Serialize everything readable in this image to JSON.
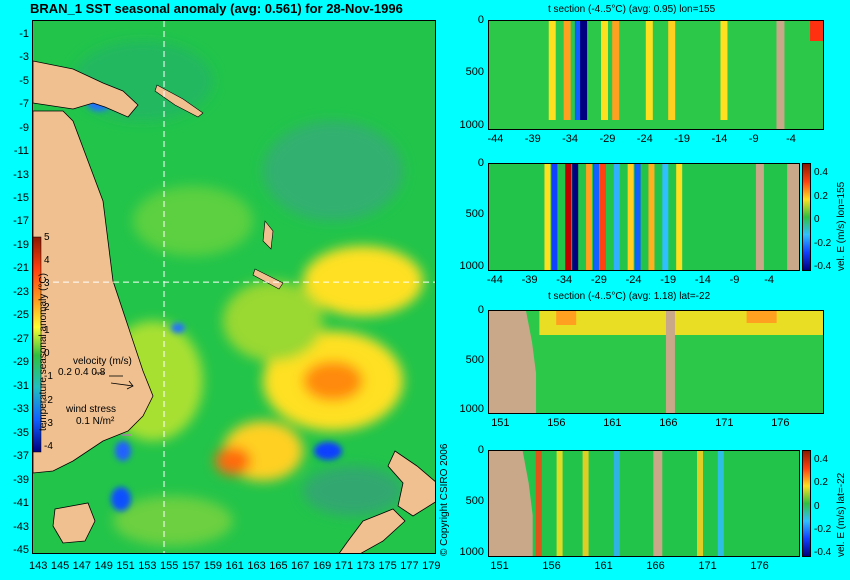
{
  "map": {
    "title": "BRAN_1 SST seasonal anomaly (avg: 0.561) for 28-Nov-1996",
    "lat_ticks": [
      "-1",
      "-3",
      "-5",
      "-7",
      "-9",
      "-11",
      "-13",
      "-15",
      "-17",
      "-19",
      "-21",
      "-23",
      "-25",
      "-27",
      "-29",
      "-31",
      "-33",
      "-35",
      "-37",
      "-39",
      "-41",
      "-43",
      "-45"
    ],
    "lon_ticks": [
      "143",
      "145",
      "147",
      "149",
      "151",
      "153",
      "155",
      "157",
      "159",
      "161",
      "163",
      "165",
      "167",
      "169",
      "171",
      "173",
      "175",
      "177",
      "179"
    ],
    "colorbar_ticks": [
      "5",
      "4",
      "3",
      "2",
      "1",
      "0",
      "-1",
      "-2",
      "-3",
      "-4"
    ],
    "colorbar_label": "temperature seasonal anomaly (°C)",
    "velocity_label": "velocity (m/s)",
    "velocity_scale": "0.2 0.4 0.8",
    "wind_label": "wind stress",
    "wind_scale": "0.1 N/m²",
    "copyright": "© Copyright CSIRO 2006",
    "section_lon": 155,
    "section_lat": -22
  },
  "panels": [
    {
      "title": "t section (-4..5°C) (avg: 0.95) lon=155",
      "y_ticks": [
        "0",
        "500",
        "1000"
      ],
      "x_ticks": [
        "-44",
        "-39",
        "-34",
        "-29",
        "-24",
        "-19",
        "-14",
        "-9",
        "-4"
      ]
    },
    {
      "title": "",
      "side_label": "vel. E (m/s) lon=155",
      "y_ticks": [
        "0",
        "500",
        "1000"
      ],
      "x_ticks": [
        "-44",
        "-39",
        "-34",
        "-29",
        "-24",
        "-19",
        "-14",
        "-9",
        "-4"
      ],
      "cb_ticks": [
        "0.4",
        "0.2",
        "0",
        "-0.2",
        "-0.4"
      ]
    },
    {
      "title": "t section (-4..5°C) (avg: 1.18) lat=-22",
      "y_ticks": [
        "0",
        "500",
        "1000"
      ],
      "x_ticks": [
        "151",
        "156",
        "161",
        "166",
        "171",
        "176"
      ]
    },
    {
      "title": "",
      "side_label": "vel. E (m/s) lat=-22",
      "y_ticks": [
        "0",
        "500",
        "1000"
      ],
      "x_ticks": [
        "151",
        "156",
        "161",
        "166",
        "171",
        "176"
      ],
      "cb_ticks": [
        "0.4",
        "0.2",
        "0",
        "-0.2",
        "-0.4"
      ]
    }
  ],
  "colors": {
    "background": "#00ffff",
    "land": "#f0c090",
    "ocean_base": "#22c44a",
    "warm": "#ffe020",
    "hot": "#ff7a10",
    "cold": "#1060ff",
    "seafloor": "#c8a888"
  },
  "chart_data": [
    {
      "type": "heatmap",
      "title": "BRAN_1 SST seasonal anomaly (avg: 0.561) for 28-Nov-1996",
      "xlabel": "",
      "ylabel": "",
      "xlim": [
        143,
        180
      ],
      "ylim": [
        -45,
        0
      ],
      "colorbar_range": [
        -4,
        5
      ],
      "colorbar_label": "temperature seasonal anomaly (°C)",
      "average": 0.561,
      "date": "28-Nov-1996",
      "x_ticks": [
        143,
        145,
        147,
        149,
        151,
        153,
        155,
        157,
        159,
        161,
        163,
        165,
        167,
        169,
        171,
        173,
        175,
        177,
        179
      ],
      "y_ticks": [
        -1,
        -3,
        -5,
        -7,
        -9,
        -11,
        -13,
        -15,
        -17,
        -19,
        -21,
        -23,
        -25,
        -27,
        -29,
        -31,
        -33,
        -35,
        -37,
        -39,
        -41,
        -43,
        -45
      ]
    },
    {
      "type": "heatmap",
      "title": "t section (-4..5°C) (avg: 0.95) lon=155",
      "average": 0.95,
      "colorbar_range": [
        -4,
        5
      ],
      "xlim": [
        -45,
        0
      ],
      "ylim": [
        1050,
        0
      ],
      "x_ticks": [
        -44,
        -39,
        -34,
        -29,
        -24,
        -19,
        -14,
        -9,
        -4
      ],
      "y_ticks": [
        0,
        500,
        1000
      ]
    },
    {
      "type": "heatmap",
      "title": "",
      "colorbar_label": "vel. E (m/s) lon=155",
      "colorbar_range": [
        -0.4,
        0.4
      ],
      "xlim": [
        -45,
        0
      ],
      "ylim": [
        1050,
        0
      ],
      "x_ticks": [
        -44,
        -39,
        -34,
        -29,
        -24,
        -19,
        -14,
        -9,
        -4
      ],
      "y_ticks": [
        0,
        500,
        1000
      ]
    },
    {
      "type": "heatmap",
      "title": "t section (-4..5°C) (avg: 1.18) lat=-22",
      "average": 1.18,
      "colorbar_range": [
        -4,
        5
      ],
      "xlim": [
        150,
        180
      ],
      "ylim": [
        1050,
        0
      ],
      "x_ticks": [
        151,
        156,
        161,
        166,
        171,
        176
      ],
      "y_ticks": [
        0,
        500,
        1000
      ]
    },
    {
      "type": "heatmap",
      "title": "",
      "colorbar_label": "vel. E (m/s) lat=-22",
      "colorbar_range": [
        -0.4,
        0.4
      ],
      "xlim": [
        150,
        180
      ],
      "ylim": [
        1050,
        0
      ],
      "x_ticks": [
        151,
        156,
        161,
        166,
        171,
        176
      ],
      "y_ticks": [
        0,
        500,
        1000
      ]
    }
  ]
}
